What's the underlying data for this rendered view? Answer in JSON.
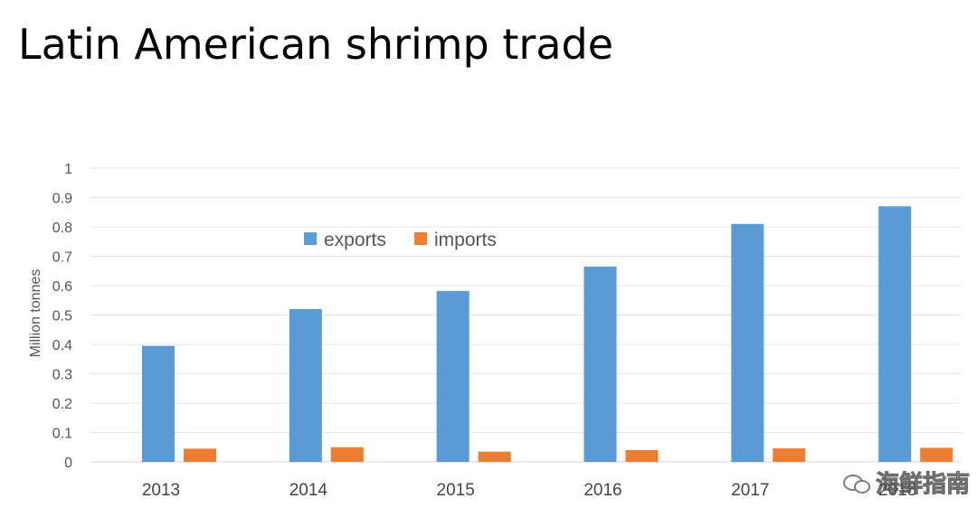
{
  "title": "Latin American shrimp trade",
  "watermark": "海鲜指南",
  "chart_data": {
    "type": "bar",
    "title": "",
    "xlabel": "",
    "ylabel": "Million tonnes",
    "categories": [
      "2013",
      "2014",
      "2015",
      "2016",
      "2017",
      "2018"
    ],
    "series": [
      {
        "name": "exports",
        "color": "#5B9BD5",
        "values": [
          0.395,
          0.52,
          0.582,
          0.665,
          0.81,
          0.87
        ]
      },
      {
        "name": "imports",
        "color": "#ED7D31",
        "values": [
          0.045,
          0.05,
          0.035,
          0.04,
          0.046,
          0.048
        ]
      }
    ],
    "ylim": [
      0,
      1
    ],
    "yticks": [
      0,
      0.1,
      0.2,
      0.3,
      0.4,
      0.5,
      0.6,
      0.7,
      0.8,
      0.9,
      1
    ],
    "ytick_labels": [
      "0",
      "0.1",
      "0.2",
      "0.3",
      "0.4",
      "0.5",
      "0.6",
      "0.7",
      "0.8",
      "0.9",
      "1"
    ],
    "grid": true,
    "legend": "inside-top-center"
  }
}
